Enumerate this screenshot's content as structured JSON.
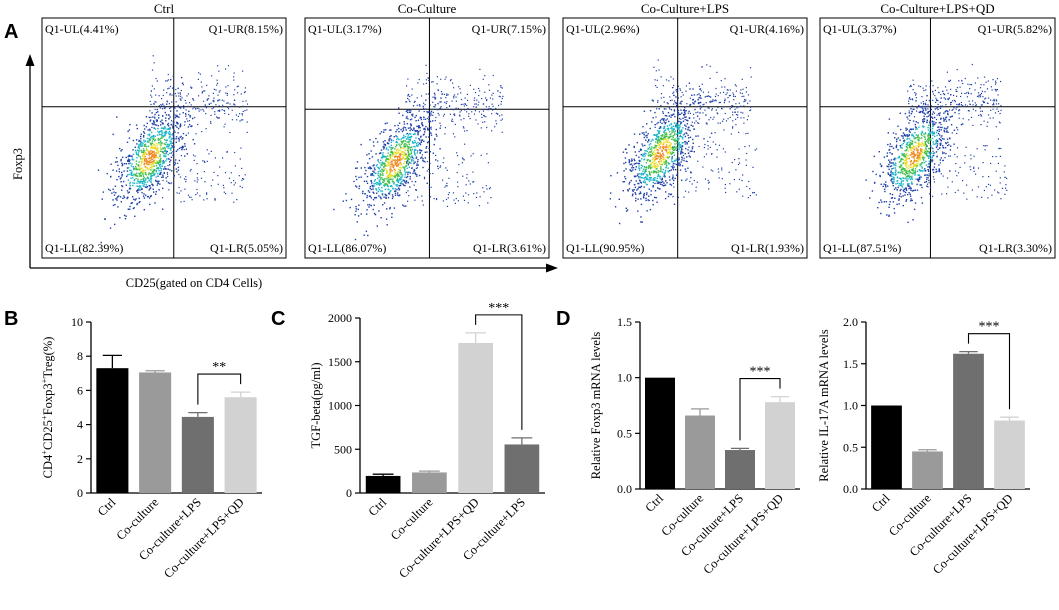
{
  "colors": {
    "bar_black": "#000000",
    "bar_mid_gray": "#9a9a9a",
    "bar_dark_gray": "#6f6f6f",
    "bar_light_gray": "#d2d2d2",
    "axis": "#000000",
    "dot_blue": "#1f3fa8",
    "dot_cyan": "#19b5c9",
    "dot_green": "#3fbf4a",
    "dot_yellow": "#e8de2a",
    "dot_orange": "#f08a24"
  },
  "panel_letters": {
    "a": "A",
    "b": "B",
    "c": "C",
    "d": "D"
  },
  "flow": {
    "ylabel": "Foxp3",
    "xlabel": "CD25(gated on CD4 Cells)",
    "plots": [
      {
        "title": "Ctrl",
        "ul": "Q1-UL(4.41%)",
        "ur": "Q1-UR(8.15%)",
        "ll": "Q1-LL(82.39%)",
        "lr": "Q1-LR(5.05%)"
      },
      {
        "title": "Co-Culture",
        "ul": "Q1-UL(3.17%)",
        "ur": "Q1-UR(7.15%)",
        "ll": "Q1-LL(86.07%)",
        "lr": "Q1-LR(3.61%)"
      },
      {
        "title": "Co-Culture+LPS",
        "ul": "Q1-UL(2.96%)",
        "ur": "Q1-UR(4.16%)",
        "ll": "Q1-LL(90.95%)",
        "lr": "Q1-LR(1.93%)"
      },
      {
        "title": "Co-Culture+LPS+QD",
        "ul": "Q1-UL(3.37%)",
        "ur": "Q1-UR(5.82%)",
        "ll": "Q1-LL(87.51%)",
        "lr": "Q1-LR(3.30%)"
      }
    ]
  },
  "chart_data": [
    {
      "type": "bar",
      "panel": "B",
      "ylabel_parts": [
        "CD4",
        "+",
        "CD25",
        "+",
        "Foxp3",
        "+",
        "Treg(%)"
      ],
      "categories": [
        "Ctrl",
        "Co-culture",
        "Co-culture+LPS",
        "Co-culture+LPS+QD"
      ],
      "values": [
        7.3,
        7.05,
        4.45,
        5.6
      ],
      "errors": [
        0.75,
        0.1,
        0.25,
        0.3
      ],
      "colors": [
        "#000000",
        "#9a9a9a",
        "#6f6f6f",
        "#d2d2d2"
      ],
      "ylim": [
        0,
        10
      ],
      "yticks": [
        "0",
        "2",
        "4",
        "6",
        "8",
        "10"
      ],
      "yticks_values": [
        0,
        2,
        4,
        6,
        8,
        10
      ],
      "significance": {
        "from": 2,
        "to": 3,
        "label": "**"
      }
    },
    {
      "type": "bar",
      "panel": "C",
      "ylabel": "TGF-beta(pg/ml)",
      "categories": [
        "Ctrl",
        "Co-culture",
        "Co-culture+LPS+QD",
        "Co-culture+LPS"
      ],
      "values": [
        195,
        235,
        1715,
        555
      ],
      "errors": [
        20,
        15,
        115,
        75
      ],
      "colors": [
        "#000000",
        "#9a9a9a",
        "#d2d2d2",
        "#6f6f6f"
      ],
      "ylim": [
        0,
        2000
      ],
      "yticks": [
        "0",
        "500",
        "1000",
        "1500",
        "2000"
      ],
      "yticks_values": [
        0,
        500,
        1000,
        1500,
        2000
      ],
      "significance": {
        "from": 2,
        "to": 3,
        "label": "***"
      }
    },
    {
      "type": "bar",
      "panel": "D",
      "ylabel": "Relative Foxp3 mRNA levels",
      "categories": [
        "Ctrl",
        "Co-culture",
        "Co-culture+LPS",
        "Co-culture+LPS+QD"
      ],
      "values": [
        1.0,
        0.66,
        0.35,
        0.78
      ],
      "errors": [
        0.0,
        0.06,
        0.015,
        0.05
      ],
      "colors": [
        "#000000",
        "#9a9a9a",
        "#6f6f6f",
        "#d2d2d2"
      ],
      "ylim": [
        0,
        1.5
      ],
      "yticks": [
        "0.0",
        "0.5",
        "1.0",
        "1.5"
      ],
      "yticks_values": [
        0,
        0.5,
        1.0,
        1.5
      ],
      "significance": {
        "from": 2,
        "to": 3,
        "label": "***"
      }
    },
    {
      "type": "bar",
      "panel": "D",
      "ylabel": "Relative IL-17A mRNA levels",
      "categories": [
        "Ctrl",
        "Co-culture",
        "Co-culture+LPS",
        "Co-culture+LPS+QD"
      ],
      "values": [
        1.0,
        0.45,
        1.62,
        0.82
      ],
      "errors": [
        0.0,
        0.02,
        0.025,
        0.04
      ],
      "colors": [
        "#000000",
        "#9a9a9a",
        "#6f6f6f",
        "#d2d2d2"
      ],
      "ylim": [
        0,
        2.0
      ],
      "yticks": [
        "0.0",
        "0.5",
        "1.0",
        "1.5",
        "2.0"
      ],
      "yticks_values": [
        0,
        0.5,
        1.0,
        1.5,
        2.0
      ],
      "significance": {
        "from": 2,
        "to": 3,
        "label": "***"
      }
    }
  ]
}
